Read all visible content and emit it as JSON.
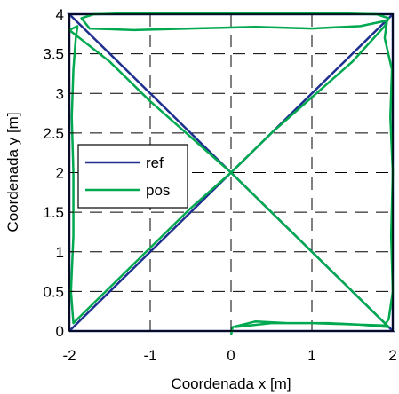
{
  "chart_data": {
    "type": "line",
    "xlabel": "Coordenada x [m]",
    "ylabel": "Coordenada y [m]",
    "xlim": [
      -2,
      2
    ],
    "ylim": [
      0,
      4
    ],
    "x_ticks": [
      -2,
      -1,
      0,
      1,
      2
    ],
    "y_ticks": [
      0,
      0.5,
      1,
      1.5,
      2,
      2.5,
      3,
      3.5,
      4
    ],
    "x_tick_labels": [
      "-2",
      "-1",
      "0",
      "1",
      "2"
    ],
    "y_tick_labels": [
      "0",
      "0.5",
      "1",
      "1.5",
      "2",
      "2.5",
      "3",
      "3.5",
      "4"
    ],
    "grid": true,
    "legend_position": "middle-left",
    "series": [
      {
        "name": "ref",
        "color": "#1f2f8f",
        "points": [
          [
            -2,
            0
          ],
          [
            2,
            0
          ],
          [
            2,
            4
          ],
          [
            -2,
            4
          ],
          [
            2,
            0
          ],
          [
            -2,
            0
          ]
        ],
        "extra_segments": [
          [
            [
              -2,
              0
            ],
            [
              -2,
              4
            ]
          ],
          [
            [
              -2,
              0
            ],
            [
              2,
              4
            ]
          ]
        ]
      },
      {
        "name": "pos",
        "color": "#00a84f",
        "points": [
          [
            0,
            -0.05
          ],
          [
            0.02,
            0.05
          ],
          [
            0.3,
            0.12
          ],
          [
            0.7,
            0.1
          ],
          [
            1.2,
            0.1
          ],
          [
            1.6,
            0.08
          ],
          [
            1.9,
            0.07
          ],
          [
            1.95,
            0.15
          ],
          [
            2,
            0.5
          ],
          [
            1.98,
            1.2
          ],
          [
            2.0,
            2.0
          ],
          [
            1.97,
            2.7
          ],
          [
            1.99,
            3.3
          ],
          [
            1.9,
            3.7
          ],
          [
            1.93,
            3.92
          ],
          [
            1.6,
            3.85
          ],
          [
            1.0,
            3.82
          ],
          [
            0.3,
            3.84
          ],
          [
            -0.5,
            3.82
          ],
          [
            -1.2,
            3.8
          ],
          [
            -1.75,
            3.82
          ],
          [
            -1.85,
            3.95
          ],
          [
            -1.7,
            4.0
          ],
          [
            -1.0,
            4.02
          ],
          [
            0.0,
            4.02
          ],
          [
            1.0,
            4.02
          ],
          [
            1.8,
            4.0
          ],
          [
            1.95,
            3.95
          ],
          [
            1.9,
            3.85
          ],
          [
            1.5,
            3.4
          ],
          [
            1.0,
            2.95
          ],
          [
            0.5,
            2.5
          ],
          [
            0.0,
            2.0
          ],
          [
            -0.5,
            1.55
          ],
          [
            -1.0,
            1.05
          ],
          [
            -1.5,
            0.55
          ],
          [
            -1.85,
            0.2
          ],
          [
            -1.95,
            0.1
          ],
          [
            -1.98,
            0.5
          ],
          [
            -1.95,
            1.2
          ],
          [
            -1.95,
            2.0
          ],
          [
            -1.97,
            2.7
          ],
          [
            -1.95,
            3.3
          ],
          [
            -1.92,
            3.7
          ],
          [
            -1.9,
            3.85
          ],
          [
            -2.0,
            3.8
          ],
          [
            -1.5,
            3.4
          ],
          [
            -1.0,
            2.9
          ],
          [
            -0.5,
            2.45
          ],
          [
            0.0,
            2.0
          ],
          [
            0.5,
            1.5
          ],
          [
            1.0,
            1.0
          ],
          [
            1.5,
            0.5
          ],
          [
            1.85,
            0.15
          ],
          [
            1.95,
            0.05
          ],
          [
            1.6,
            0.08
          ],
          [
            1.0,
            0.1
          ],
          [
            0.5,
            0.1
          ],
          [
            0.05,
            0.05
          ]
        ]
      }
    ]
  }
}
